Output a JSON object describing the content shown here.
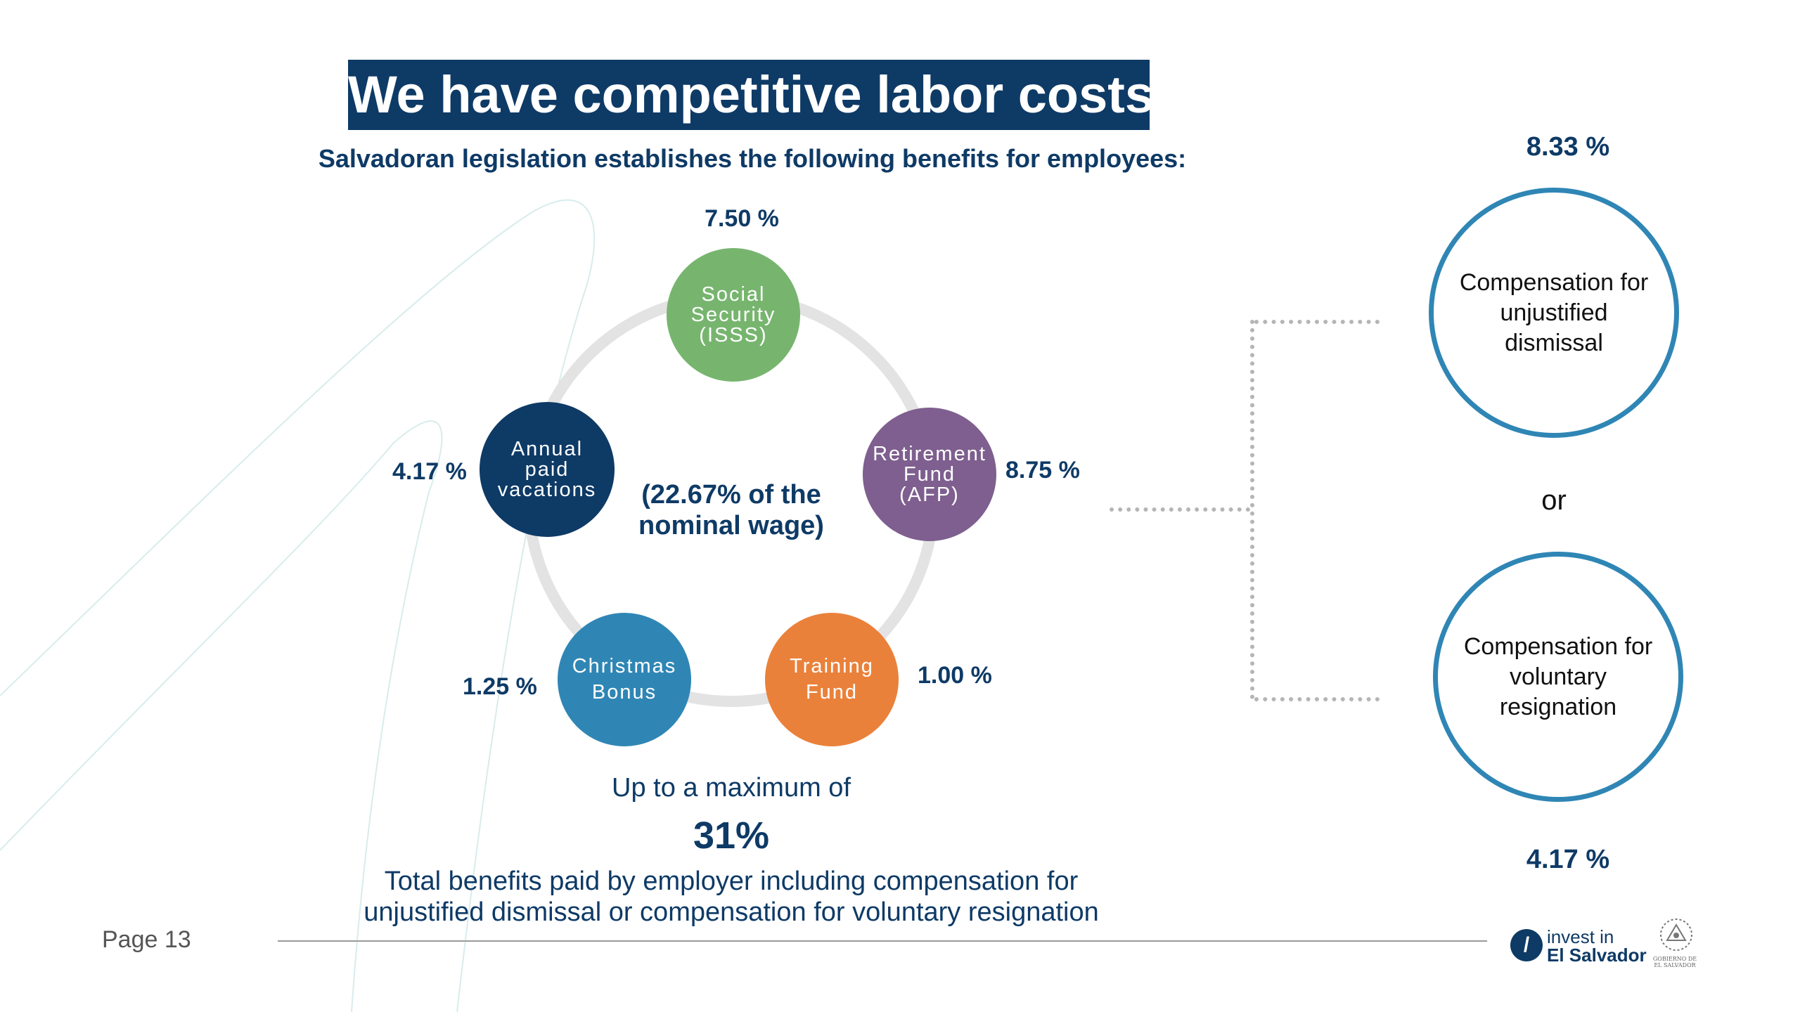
{
  "title": "We have competitive labor costs",
  "subtitle": "Salvadoran legislation establishes the following benefits for employees:",
  "cycle": {
    "center_text_line1": "(22.67% of the",
    "center_text_line2": "nominal wage)",
    "items": [
      {
        "label_lines": [
          "Social",
          "Security",
          "(ISSS)"
        ],
        "percent": "7.50 %",
        "color": "#77b56f"
      },
      {
        "label_lines": [
          "Retirement",
          "Fund",
          "(AFP)"
        ],
        "percent": "8.75 %",
        "color": "#7e5f8f"
      },
      {
        "label_lines": [
          "Training",
          "Fund"
        ],
        "percent": "1.00 %",
        "color": "#ea813a"
      },
      {
        "label_lines": [
          "Christmas",
          "Bonus"
        ],
        "percent": "1.25 %",
        "color": "#2f86b5"
      },
      {
        "label_lines": [
          "Annual",
          "paid",
          "vacations"
        ],
        "percent": "4.17 %",
        "color": "#0e3a66"
      }
    ]
  },
  "compensation": {
    "top": {
      "percent": "8.33 %",
      "label_lines": [
        "Compensation for",
        "unjustified",
        "dismissal"
      ]
    },
    "separator": "or",
    "bottom": {
      "percent": "4.17 %",
      "label_lines": [
        "Compensation for",
        "voluntary",
        "resignation"
      ]
    },
    "outline_color": "#2f86b5"
  },
  "summary": {
    "max_label": "Up to a maximum of",
    "max_value": "31%",
    "total_line1": "Total benefits paid by employer including compensation for",
    "total_line2": "unjustified dismissal or compensation for voluntary resignation"
  },
  "footer": {
    "page_label": "Page 13",
    "logo_line1": "invest in",
    "logo_line2": "El Salvador",
    "logo_icon": "invest-el-salvador-logo-icon",
    "seal_icon": "government-seal-icon",
    "seal_text_line1": "GOBIERNO DE",
    "seal_text_line2": "EL SALVADOR"
  },
  "colors": {
    "navy": "#0e3a66",
    "ring": "#e3e3e3",
    "connector": "#b5b5b5"
  }
}
